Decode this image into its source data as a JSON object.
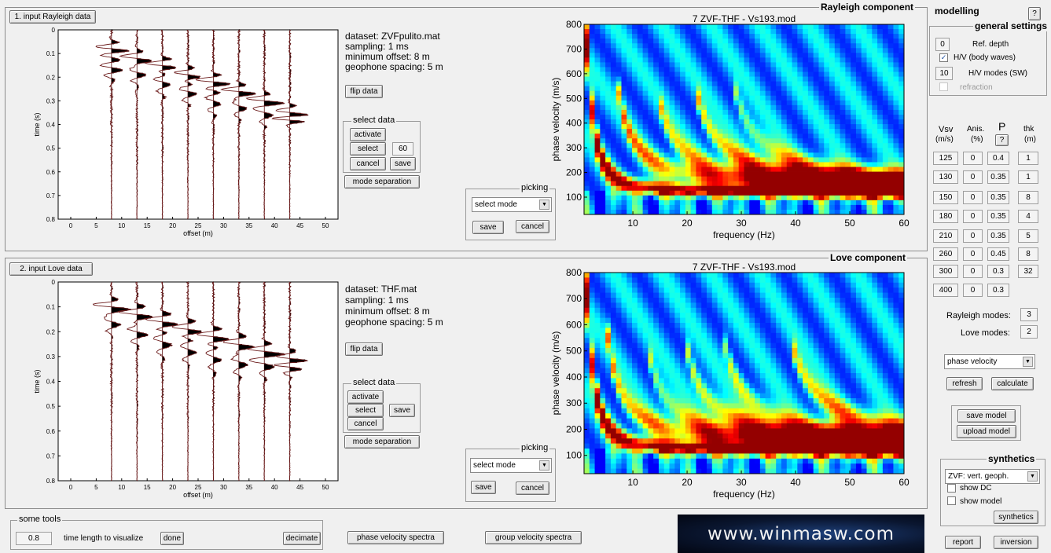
{
  "rayleigh": {
    "section_label": "1. input Rayleigh data",
    "component_label": "Rayleigh component",
    "dataset": "dataset: ZVFpulito.mat",
    "sampling": "sampling: 1 ms",
    "min_offset": "minimum offset: 8 m",
    "spacing": "geophone spacing: 5 m",
    "flip_label": "flip data",
    "select_group_title": "select data",
    "activate_label": "activate",
    "select_label": "select",
    "select_value": "60",
    "cancel_label": "cancel",
    "save_label": "save",
    "mode_sep_label": "mode separation",
    "picking_title": "picking",
    "picking_select": "select mode",
    "picking_save": "save",
    "picking_cancel": "cancel",
    "spectrum_title": "7 ZVF-THF - Vs193.mod"
  },
  "love": {
    "section_label": "2. input Love data",
    "component_label": "Love component",
    "dataset": "dataset: THF.mat",
    "sampling": "sampling: 1 ms",
    "min_offset": "minimum offset: 8 m",
    "spacing": "geophone spacing: 5 m",
    "flip_label": "flip data",
    "select_group_title": "select data",
    "activate_label": "activate",
    "select_label": "select",
    "cancel_label": "cancel",
    "save_label": "save",
    "mode_sep_label": "mode separation",
    "picking_title": "picking",
    "picking_select": "select mode",
    "picking_save": "save",
    "picking_cancel": "cancel",
    "spectrum_title": "7 ZVF-THF - Vs193.mod"
  },
  "seismogram_axes": {
    "ylabel": "time (s)",
    "xlabel": "offset (m)",
    "y_ticks": [
      "0",
      "0.1",
      "0.2",
      "0.3",
      "0.4",
      "0.5",
      "0.6",
      "0.7",
      "0.8"
    ],
    "x_ticks": [
      "0",
      "5",
      "10",
      "15",
      "20",
      "25",
      "30",
      "35",
      "40",
      "45",
      "50"
    ]
  },
  "spectrum_axes": {
    "ylabel": "phase velocity (m/s)",
    "xlabel": "frequency (Hz)",
    "y_ticks": [
      "100",
      "200",
      "300",
      "400",
      "500",
      "600",
      "700",
      "800"
    ],
    "x_ticks": [
      "10",
      "20",
      "30",
      "40",
      "50",
      "60"
    ]
  },
  "tools": {
    "title": "some tools",
    "time_value": "0.8",
    "time_label": "time length to visualize",
    "done_label": "done",
    "decimate_label": "decimate",
    "phase_spectra_label": "phase velocity spectra",
    "group_spectra_label": "group velocity spectra"
  },
  "banner": {
    "text": "www.winmasw.com"
  },
  "modelling": {
    "title": "modelling",
    "help": "?",
    "general_title": "general settings",
    "ref_depth_value": "0",
    "ref_depth_label": "Ref. depth",
    "hv_body_checked": true,
    "hv_body_label": "H/V (body waves)",
    "hv_modes_value": "10",
    "hv_modes_label": "H/V modes (SW)",
    "refraction_label": "refraction",
    "headers": {
      "vsv": "Vsv",
      "vsv_unit": "(m/s)",
      "anis": "Anis.",
      "anis_unit": "(%)",
      "p": "P",
      "p_help": "?",
      "thk": "thk",
      "thk_unit": "(m)"
    },
    "layers": [
      {
        "vsv": "125",
        "anis": "0",
        "p": "0.4",
        "thk": "1"
      },
      {
        "vsv": "130",
        "anis": "0",
        "p": "0.35",
        "thk": "1"
      },
      {
        "vsv": "150",
        "anis": "0",
        "p": "0.35",
        "thk": "8"
      },
      {
        "vsv": "180",
        "anis": "0",
        "p": "0.35",
        "thk": "4"
      },
      {
        "vsv": "210",
        "anis": "0",
        "p": "0.35",
        "thk": "5"
      },
      {
        "vsv": "260",
        "anis": "0",
        "p": "0.45",
        "thk": "8"
      },
      {
        "vsv": "300",
        "anis": "0",
        "p": "0.3",
        "thk": "32"
      },
      {
        "vsv": "400",
        "anis": "0",
        "p": "0.3",
        "thk": ""
      }
    ],
    "rayleigh_modes_label": "Rayleigh modes:",
    "rayleigh_modes_value": "3",
    "love_modes_label": "Love modes:",
    "love_modes_value": "2",
    "velocity_select": "phase velocity",
    "refresh_label": "refresh",
    "calculate_label": "calculate",
    "save_model_label": "save model",
    "upload_model_label": "upload model",
    "synthetics_title": "synthetics",
    "synthetics_select": "ZVF: vert. geoph.",
    "show_dc_label": "show DC",
    "show_model_label": "show model",
    "synthetics_button": "synthetics",
    "report_label": "report",
    "inversion_label": "inversion"
  },
  "colors": {
    "jet_red": "#d7191c",
    "jet_blue": "#1a3aa8",
    "trace_fill": "#000000",
    "trace_line": "#6b1a1a"
  }
}
